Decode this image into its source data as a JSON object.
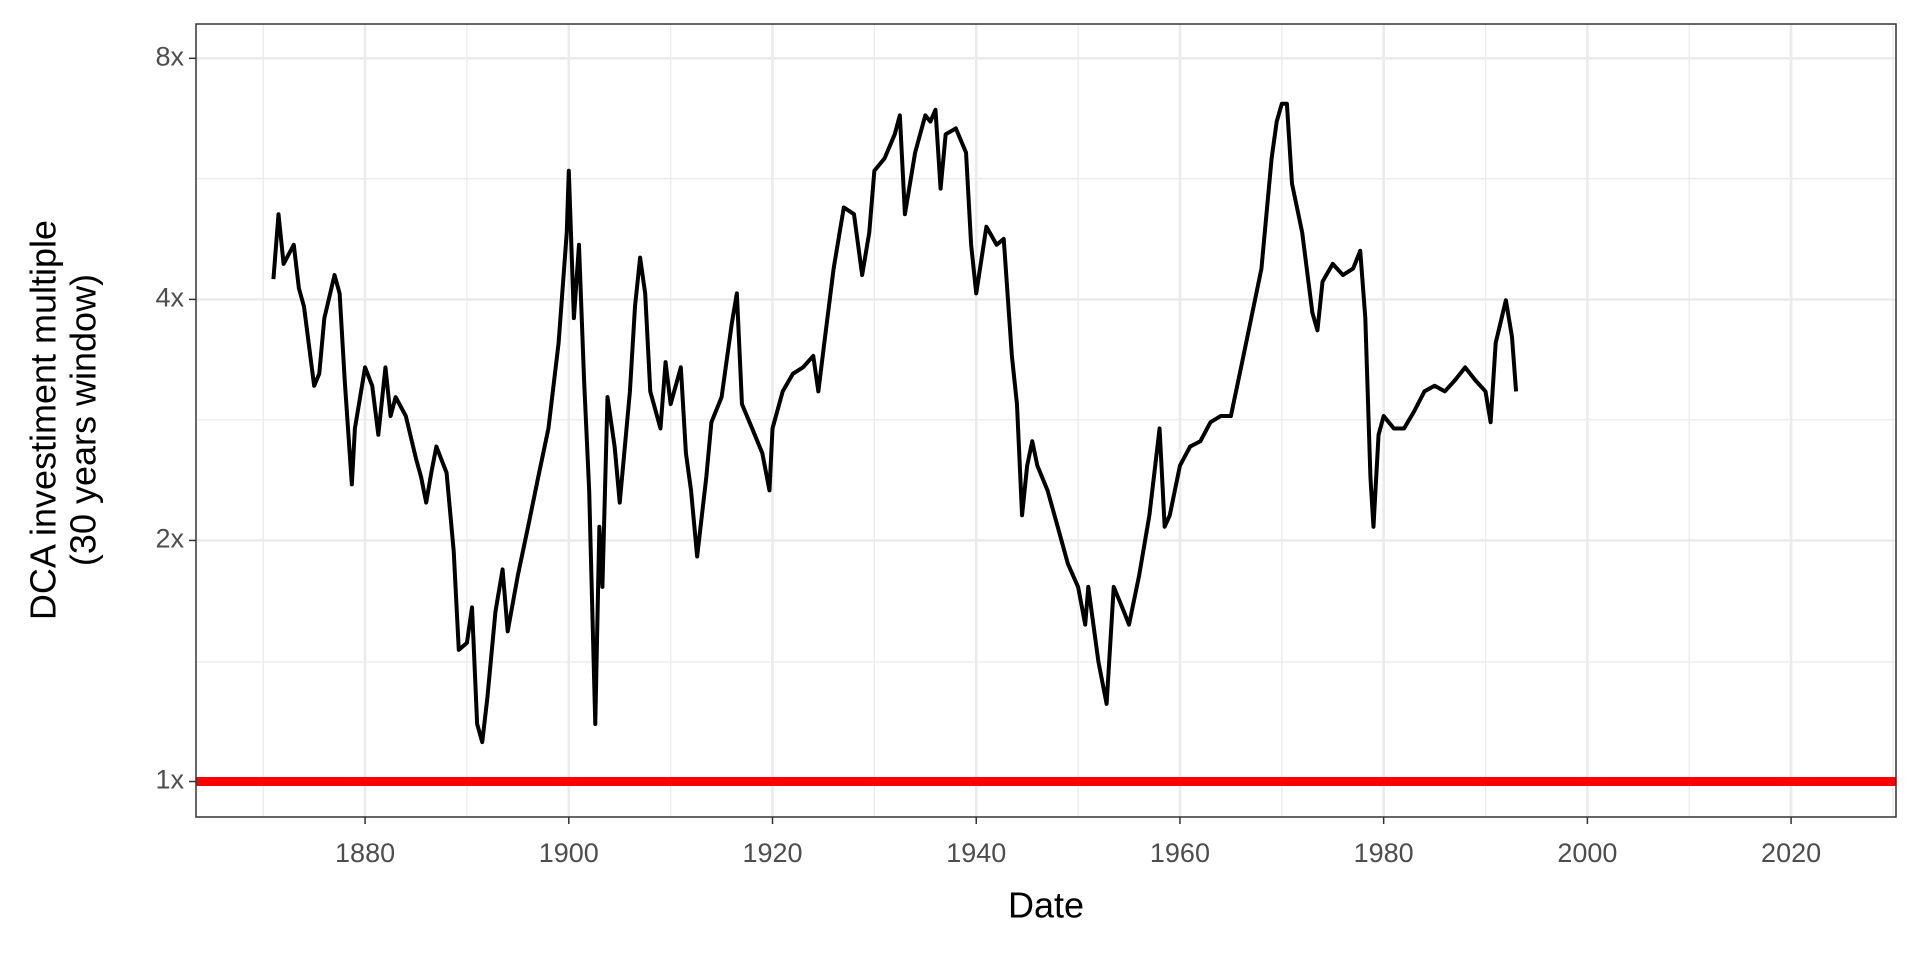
{
  "chart_data": {
    "type": "line",
    "xlabel": "Date",
    "ylabel": [
      "DCA investiment multiple",
      "(30 years window)"
    ],
    "log_y": true,
    "grid": true,
    "xlim": [
      1863.4,
      2030.3
    ],
    "ylim": [
      0.903,
      8.83
    ],
    "xticks": [
      1880,
      1900,
      1920,
      1940,
      1960,
      1980,
      2000,
      2020
    ],
    "yticks": [
      {
        "value": 1,
        "label": "1x"
      },
      {
        "value": 2,
        "label": "2x"
      },
      {
        "value": 4,
        "label": "4x"
      },
      {
        "value": 8,
        "label": "8x"
      }
    ],
    "x_minor_breaks": [
      1870,
      1890,
      1910,
      1930,
      1950,
      1970,
      1990,
      2010,
      2030
    ],
    "y_minor_breaks": [
      1.41,
      2.83,
      5.66
    ],
    "hline": {
      "value": 1,
      "color": "#ff0000"
    },
    "x": [
      1871,
      1871.5,
      1872,
      1873,
      1873.5,
      1874,
      1875,
      1875.5,
      1876,
      1877,
      1877.5,
      1878,
      1878.7,
      1879,
      1880,
      1880.7,
      1881.3,
      1882,
      1882.5,
      1883,
      1884,
      1885,
      1885.5,
      1886,
      1886.5,
      1887,
      1888,
      1888.7,
      1889.2,
      1890,
      1890.5,
      1891,
      1891.5,
      1892,
      1892.8,
      1893.5,
      1894,
      1895,
      1896,
      1897,
      1898,
      1899,
      1899.8,
      1900,
      1900.5,
      1901,
      1901.5,
      1902,
      1902.6,
      1903,
      1903.3,
      1903.8,
      1904.5,
      1905,
      1906,
      1906.5,
      1907,
      1907.5,
      1908,
      1909,
      1909.5,
      1910,
      1911,
      1911.5,
      1912,
      1912.6,
      1913.5,
      1914,
      1915,
      1916,
      1916.5,
      1917,
      1918,
      1919,
      1919.7,
      1920,
      1921,
      1922,
      1923,
      1924,
      1924.5,
      1925,
      1926,
      1927,
      1928,
      1928.8,
      1929.5,
      1930,
      1931,
      1932,
      1932.5,
      1933,
      1934,
      1935,
      1935.5,
      1936,
      1936.5,
      1937,
      1938,
      1939,
      1939.5,
      1940,
      1941,
      1942,
      1942.7,
      1943.5,
      1944,
      1944.5,
      1945,
      1945.5,
      1946,
      1947,
      1948,
      1949,
      1950,
      1950.7,
      1951,
      1952,
      1952.8,
      1953.5,
      1954.5,
      1955,
      1956,
      1957,
      1958,
      1958.5,
      1959,
      1960,
      1961,
      1962,
      1963,
      1964,
      1965,
      1966,
      1967,
      1968,
      1969,
      1969.5,
      1970,
      1970.5,
      1971,
      1972,
      1973,
      1973.5,
      1974,
      1975,
      1976,
      1977,
      1977.7,
      1978.2,
      1978.7,
      1979,
      1979.5,
      1980,
      1981,
      1982,
      1983,
      1984,
      1985,
      1986,
      1987,
      1988,
      1989,
      1990,
      1990.5,
      1991,
      1992,
      1992.6,
      1993
    ],
    "series": [
      {
        "color": "#000000",
        "values": [
          4.24,
          5.11,
          4.43,
          4.68,
          4.13,
          3.92,
          3.12,
          3.23,
          3.79,
          4.29,
          4.07,
          3.17,
          2.35,
          2.76,
          3.29,
          3.12,
          2.71,
          3.29,
          2.86,
          3.02,
          2.86,
          2.53,
          2.4,
          2.23,
          2.43,
          2.62,
          2.43,
          1.94,
          1.46,
          1.49,
          1.65,
          1.18,
          1.12,
          1.27,
          1.63,
          1.84,
          1.54,
          1.81,
          2.08,
          2.4,
          2.76,
          3.53,
          4.85,
          5.79,
          3.79,
          4.68,
          3.17,
          2.31,
          1.18,
          2.08,
          1.75,
          3.02,
          2.62,
          2.23,
          3.07,
          3.92,
          4.51,
          4.07,
          3.07,
          2.76,
          3.34,
          2.96,
          3.29,
          2.57,
          2.31,
          1.91,
          2.4,
          2.81,
          3.02,
          3.73,
          4.07,
          2.96,
          2.76,
          2.57,
          2.31,
          2.76,
          3.07,
          3.23,
          3.29,
          3.4,
          3.07,
          3.46,
          4.37,
          5.21,
          5.11,
          4.29,
          4.85,
          5.79,
          6.0,
          6.43,
          6.79,
          5.11,
          6.1,
          6.79,
          6.67,
          6.9,
          5.5,
          6.43,
          6.54,
          6.1,
          4.68,
          4.07,
          4.93,
          4.68,
          4.76,
          3.4,
          2.96,
          2.15,
          2.48,
          2.66,
          2.48,
          2.31,
          2.08,
          1.87,
          1.75,
          1.57,
          1.75,
          1.41,
          1.25,
          1.75,
          1.63,
          1.57,
          1.81,
          2.15,
          2.76,
          2.08,
          2.15,
          2.48,
          2.62,
          2.66,
          2.81,
          2.86,
          2.86,
          3.29,
          3.79,
          4.37,
          6.0,
          6.67,
          7.02,
          7.02,
          5.58,
          4.85,
          3.85,
          3.66,
          4.21,
          4.43,
          4.29,
          4.37,
          4.6,
          3.79,
          2.4,
          2.08,
          2.71,
          2.86,
          2.76,
          2.76,
          2.9,
          3.07,
          3.12,
          3.07,
          3.17,
          3.29,
          3.17,
          3.07,
          2.81,
          3.53,
          3.99,
          3.59,
          3.07
        ]
      }
    ]
  }
}
